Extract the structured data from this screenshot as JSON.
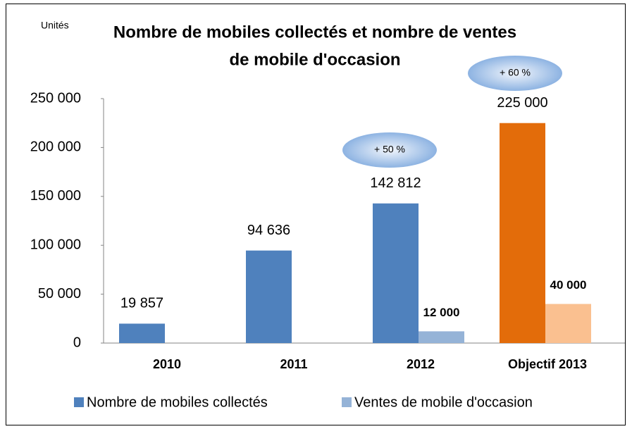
{
  "chart_data": {
    "type": "bar",
    "title": [
      "Nombre de mobiles collectés et nombre de ventes",
      "de mobile d'occasion"
    ],
    "y_label": "Unités",
    "categories": [
      "2010",
      "2011",
      "2012",
      "Objectif 2013"
    ],
    "category_label_colors": [
      "#000000",
      "#000000",
      "#000000",
      "#e36c0a"
    ],
    "series": [
      {
        "name": "Nombre de mobiles collectés",
        "color": "#4f81bd",
        "colors": [
          "#4f81bd",
          "#4f81bd",
          "#4f81bd",
          "#e36c0a"
        ],
        "values": [
          19857,
          94636,
          142812,
          225000
        ],
        "value_labels": [
          "19 857",
          "94 636",
          "142 812",
          "225 000"
        ]
      },
      {
        "name": "Ventes de mobile d'occasion",
        "color": "#95b3d7",
        "colors": [
          "#95b3d7",
          "#95b3d7",
          "#95b3d7",
          "#fac090"
        ],
        "values": [
          null,
          null,
          12000,
          40000
        ],
        "value_labels": [
          null,
          null,
          "12 000",
          "40 000"
        ]
      }
    ],
    "annotations": [
      "+ 50 %",
      "+ 60 %"
    ],
    "ylim": [
      0,
      250000
    ],
    "yticks": [
      0,
      {
        "value": 50000,
        "label": "50 000"
      },
      {
        "value": 100000,
        "label": "100 000"
      },
      {
        "value": 150000,
        "label": "150 000"
      },
      {
        "value": 200000,
        "label": "200 000"
      },
      {
        "value": 250000,
        "label": "250 000"
      }
    ],
    "grid": false,
    "legend": "bottom"
  }
}
